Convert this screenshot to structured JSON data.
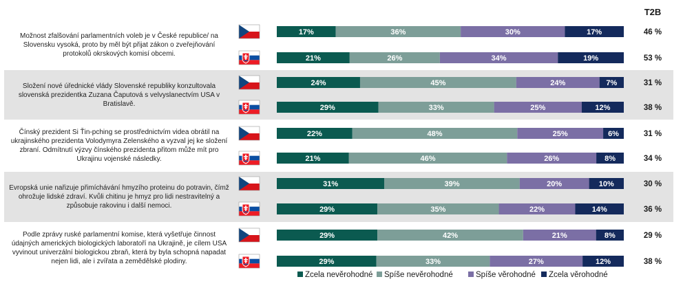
{
  "header": {
    "t2b_label": "T2B"
  },
  "colors": {
    "zcela_nev": "#0b5a50",
    "spise_nev": "#7d9e98",
    "spise_ver": "#7b6fa5",
    "zcela_ver": "#142a5c",
    "band": "#e3e3e3"
  },
  "chart_data": {
    "type": "bar",
    "orientation": "horizontal",
    "stacked": true,
    "normalized": true,
    "legend_position": "bottom",
    "xlim": [
      0,
      100
    ],
    "series_names": [
      "Zcela nevěrohodné",
      "Spíše nevěrohodné",
      "Spíše věrohodné",
      "Zcela věrohodné"
    ],
    "value_format_suffix": "%",
    "t2b_header": "T2B",
    "groups": [
      {
        "statement": "Možnost zfalšování parlamentních voleb je v České republice/ na Slovensku vysoká, proto by měl být přijat zákon o zveřejňování protokolů okrskových komisí obcemi.",
        "rows": [
          {
            "country": "CZ",
            "flag": "czech-flag",
            "values": [
              17,
              36,
              30,
              17
            ],
            "labels": [
              "17%",
              "36%",
              "30%",
              "17%"
            ],
            "t2b": "46 %"
          },
          {
            "country": "SK",
            "flag": "slovak-flag",
            "values": [
              21,
              26,
              34,
              19
            ],
            "labels": [
              "21%",
              "26%",
              "34%",
              "19%"
            ],
            "t2b": "53 %"
          }
        ]
      },
      {
        "statement": "Složení nové úřednické vlády Slovenské republiky konzultovala slovenská prezidentka Zuzana Čaputová s velvyslanectvím USA v Bratislavě.",
        "rows": [
          {
            "country": "CZ",
            "flag": "czech-flag",
            "values": [
              24,
              45,
              24,
              7
            ],
            "labels": [
              "24%",
              "45%",
              "24%",
              "7%"
            ],
            "t2b": "31 %"
          },
          {
            "country": "SK",
            "flag": "slovak-flag",
            "values": [
              29,
              33,
              25,
              12
            ],
            "labels": [
              "29%",
              "33%",
              "25%",
              "12%"
            ],
            "t2b": "38 %"
          }
        ]
      },
      {
        "statement": "Čínský prezident Si Ťin-pching se prostřednictvím videa obrátil na ukrajinského prezidenta Volodymyra Zelenského a vyzval jej ke složení zbraní. Odmítnutí výzvy čínského prezidenta přitom může mít pro Ukrajinu vojenské následky.",
        "rows": [
          {
            "country": "CZ",
            "flag": "czech-flag",
            "values": [
              22,
              48,
              25,
              6
            ],
            "labels": [
              "22%",
              "48%",
              "25%",
              "6%"
            ],
            "t2b": "31 %"
          },
          {
            "country": "SK",
            "flag": "slovak-flag",
            "values": [
              21,
              46,
              26,
              8
            ],
            "labels": [
              "21%",
              "46%",
              "26%",
              "8%"
            ],
            "t2b": "34 %"
          }
        ]
      },
      {
        "statement": "Evropská unie nařizuje přimíchávání hmyzího proteinu do potravin, čímž ohrožuje lidské zdraví. Kvůli chitinu je hmyz pro lidi nestravitelný a způsobuje rakovinu i další nemoci.",
        "rows": [
          {
            "country": "CZ",
            "flag": "czech-flag",
            "values": [
              31,
              39,
              20,
              10
            ],
            "labels": [
              "31%",
              "39%",
              "20%",
              "10%"
            ],
            "t2b": "30 %"
          },
          {
            "country": "SK",
            "flag": "slovak-flag",
            "values": [
              29,
              35,
              22,
              14
            ],
            "labels": [
              "29%",
              "35%",
              "22%",
              "14%"
            ],
            "t2b": "36 %"
          }
        ]
      },
      {
        "statement": "Podle zprávy ruské parlamentní komise, která vyšetřuje činnost údajných amerických biologických laboratoří na Ukrajině, je cílem USA vyvinout univerzální biologickou zbraň, která by byla schopná napadat nejen lidi, ale i zvířata a zemědělské plodiny.",
        "rows": [
          {
            "country": "CZ",
            "flag": "czech-flag",
            "values": [
              29,
              42,
              21,
              8
            ],
            "labels": [
              "29%",
              "42%",
              "21%",
              "8%"
            ],
            "t2b": "29 %"
          },
          {
            "country": "SK",
            "flag": "slovak-flag",
            "values": [
              29,
              33,
              27,
              12
            ],
            "labels": [
              "29%",
              "33%",
              "27%",
              "12%"
            ],
            "t2b": "38 %"
          }
        ]
      }
    ]
  }
}
